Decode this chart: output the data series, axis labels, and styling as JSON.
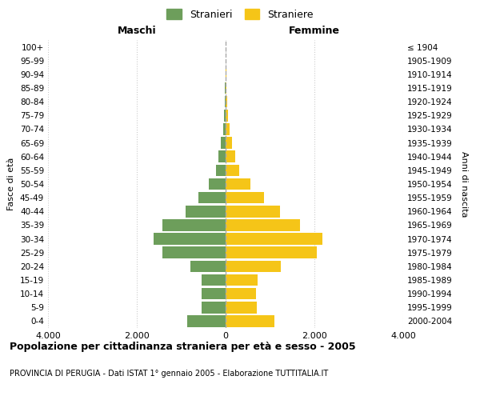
{
  "age_groups": [
    "0-4",
    "5-9",
    "10-14",
    "15-19",
    "20-24",
    "25-29",
    "30-34",
    "35-39",
    "40-44",
    "45-49",
    "50-54",
    "55-59",
    "60-64",
    "65-69",
    "70-74",
    "75-79",
    "80-84",
    "85-89",
    "90-94",
    "95-99",
    "100+"
  ],
  "birth_years": [
    "2000-2004",
    "1995-1999",
    "1990-1994",
    "1985-1989",
    "1980-1984",
    "1975-1979",
    "1970-1974",
    "1965-1969",
    "1960-1964",
    "1955-1959",
    "1950-1954",
    "1945-1949",
    "1940-1944",
    "1935-1939",
    "1930-1934",
    "1925-1929",
    "1920-1924",
    "1915-1919",
    "1910-1914",
    "1905-1909",
    "≤ 1904"
  ],
  "maschi": [
    870,
    540,
    540,
    540,
    800,
    1430,
    1630,
    1430,
    900,
    620,
    370,
    220,
    160,
    100,
    60,
    30,
    20,
    10,
    5,
    0,
    0
  ],
  "femmine": [
    1100,
    700,
    680,
    720,
    1250,
    2060,
    2180,
    1680,
    1230,
    870,
    560,
    310,
    220,
    140,
    90,
    50,
    30,
    15,
    10,
    5,
    5
  ],
  "male_color": "#6d9e5b",
  "female_color": "#f5c518",
  "xlim": 4000,
  "title": "Popolazione per cittadinanza straniera per età e sesso - 2005",
  "subtitle": "PROVINCIA DI PERUGIA - Dati ISTAT 1° gennaio 2005 - Elaborazione TUTTITALIA.IT",
  "xlabel_left": "Maschi",
  "xlabel_right": "Femmine",
  "ylabel_left": "Fasce di età",
  "ylabel_right": "Anni di nascita",
  "legend_male": "Stranieri",
  "legend_female": "Straniere",
  "background_color": "#ffffff",
  "grid_color": "#cccccc",
  "tick_values": [
    -4000,
    -2000,
    0,
    2000,
    4000
  ],
  "tick_labels": [
    "4.000",
    "2.000",
    "0",
    "2.000",
    "4.000"
  ]
}
